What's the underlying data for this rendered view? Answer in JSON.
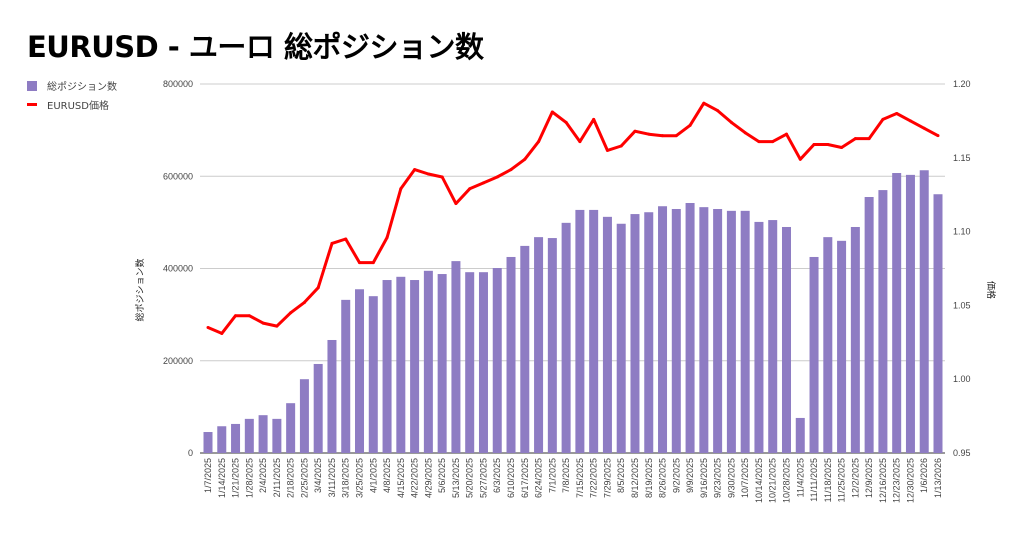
{
  "chart_data": {
    "type": "bar+line",
    "title": "EURUSD - ユーロ 総ポジション数",
    "xlabel": "",
    "ylabel": "総ポジション数",
    "y2label": "価格",
    "ylim": [
      0,
      800000
    ],
    "y2lim": [
      0.95,
      1.2
    ],
    "yticks": [
      "0",
      "200000",
      "400000",
      "600000",
      "800000"
    ],
    "y2ticks": [
      "0.95",
      "1.00",
      "1.05",
      "1.10",
      "1.15",
      "1.20"
    ],
    "grid": true,
    "legend_position": "top-left",
    "categories": [
      "1/7/2025",
      "1/14/2025",
      "1/21/2025",
      "1/28/2025",
      "2/4/2025",
      "2/11/2025",
      "2/18/2025",
      "2/25/2025",
      "3/4/2025",
      "3/11/2025",
      "3/18/2025",
      "3/25/2025",
      "4/1/2025",
      "4/8/2025",
      "4/15/2025",
      "4/22/2025",
      "4/29/2025",
      "5/6/2025",
      "5/13/2025",
      "5/20/2025",
      "5/27/2025",
      "6/3/2025",
      "6/10/2025",
      "6/17/2025",
      "6/24/2025",
      "7/1/2025",
      "7/8/2025",
      "7/15/2025",
      "7/22/2025",
      "7/29/2025",
      "8/5/2025",
      "8/12/2025",
      "8/19/2025",
      "8/26/2025",
      "9/2/2025",
      "9/9/2025",
      "9/16/2025",
      "9/23/2025",
      "9/30/2025",
      "10/7/2025",
      "10/14/2025",
      "10/21/2025",
      "10/28/2025",
      "11/4/2025",
      "11/11/2025",
      "11/18/2025",
      "11/25/2025",
      "12/2/2025",
      "12/9/2025",
      "12/16/2025",
      "12/23/2025",
      "12/30/2025",
      "1/6/2026",
      "1/13/2026"
    ],
    "series": [
      {
        "name": "総ポジション数",
        "type": "bar",
        "axis": "left",
        "color": "#8e7cc3",
        "values": [
          45500,
          58000,
          63000,
          74000,
          82000,
          74000,
          108000,
          160000,
          193000,
          245000,
          332000,
          355000,
          340000,
          375000,
          382000,
          375000,
          395000,
          388000,
          416000,
          392000,
          392000,
          401000,
          425000,
          449000,
          468000,
          466000,
          499000,
          527000,
          527000,
          512000,
          497000,
          518000,
          522000,
          535000,
          529000,
          542000,
          533000,
          529000,
          525000,
          525000,
          501000,
          505000,
          490000,
          76000,
          425000,
          468000,
          460000,
          490000,
          555000,
          570000,
          607000,
          603000,
          613000,
          561000
        ]
      },
      {
        "name": "EURUSD価格",
        "type": "line",
        "axis": "right",
        "color": "#ff0000",
        "values": [
          1.035,
          1.031,
          1.043,
          1.043,
          1.038,
          1.036,
          1.045,
          1.052,
          1.062,
          1.092,
          1.095,
          1.079,
          1.079,
          1.096,
          1.129,
          1.142,
          1.139,
          1.137,
          1.119,
          1.129,
          1.133,
          1.137,
          1.142,
          1.149,
          1.161,
          1.181,
          1.174,
          1.161,
          1.176,
          1.155,
          1.158,
          1.168,
          1.166,
          1.165,
          1.165,
          1.172,
          1.187,
          1.182,
          1.174,
          1.167,
          1.161,
          1.161,
          1.166,
          1.149,
          1.159,
          1.159,
          1.157,
          1.163,
          1.163,
          1.176,
          1.18,
          1.175,
          1.17,
          1.165
        ]
      }
    ]
  }
}
